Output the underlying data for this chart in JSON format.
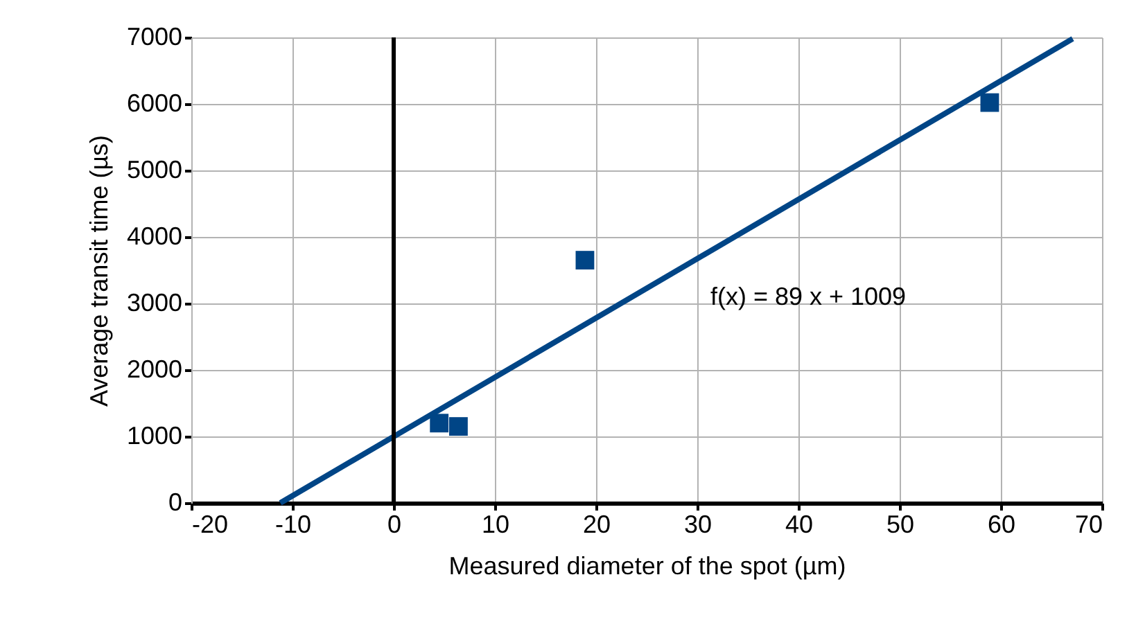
{
  "chart_data": {
    "type": "scatter",
    "xlabel": "Measured diameter of the spot (µm)",
    "ylabel": "Average transit time (µs)",
    "series": [
      {
        "marker": "square",
        "color": "#004586",
        "x": [
          4.5,
          6.4,
          18.9,
          58.9
        ],
        "values": [
          1200,
          1150,
          3650,
          6020
        ]
      },
      {
        "type": "line",
        "color": "#004586",
        "x": [
          -11.2,
          67.1
        ],
        "values": [
          0,
          6980
        ]
      }
    ],
    "annotations": [
      "f(x) = 89 x + 1009"
    ],
    "ref_lines": [
      {
        "axis": "x",
        "value": 0,
        "color": "#000000"
      }
    ],
    "xlim": [
      -20,
      70
    ],
    "xticks": [
      -20,
      -10,
      0,
      10,
      20,
      30,
      40,
      50,
      60,
      70
    ],
    "ylim": [
      0,
      7000
    ],
    "yticks": [
      0,
      1000,
      2000,
      3000,
      4000,
      5000,
      6000,
      7000
    ],
    "grid": true
  }
}
